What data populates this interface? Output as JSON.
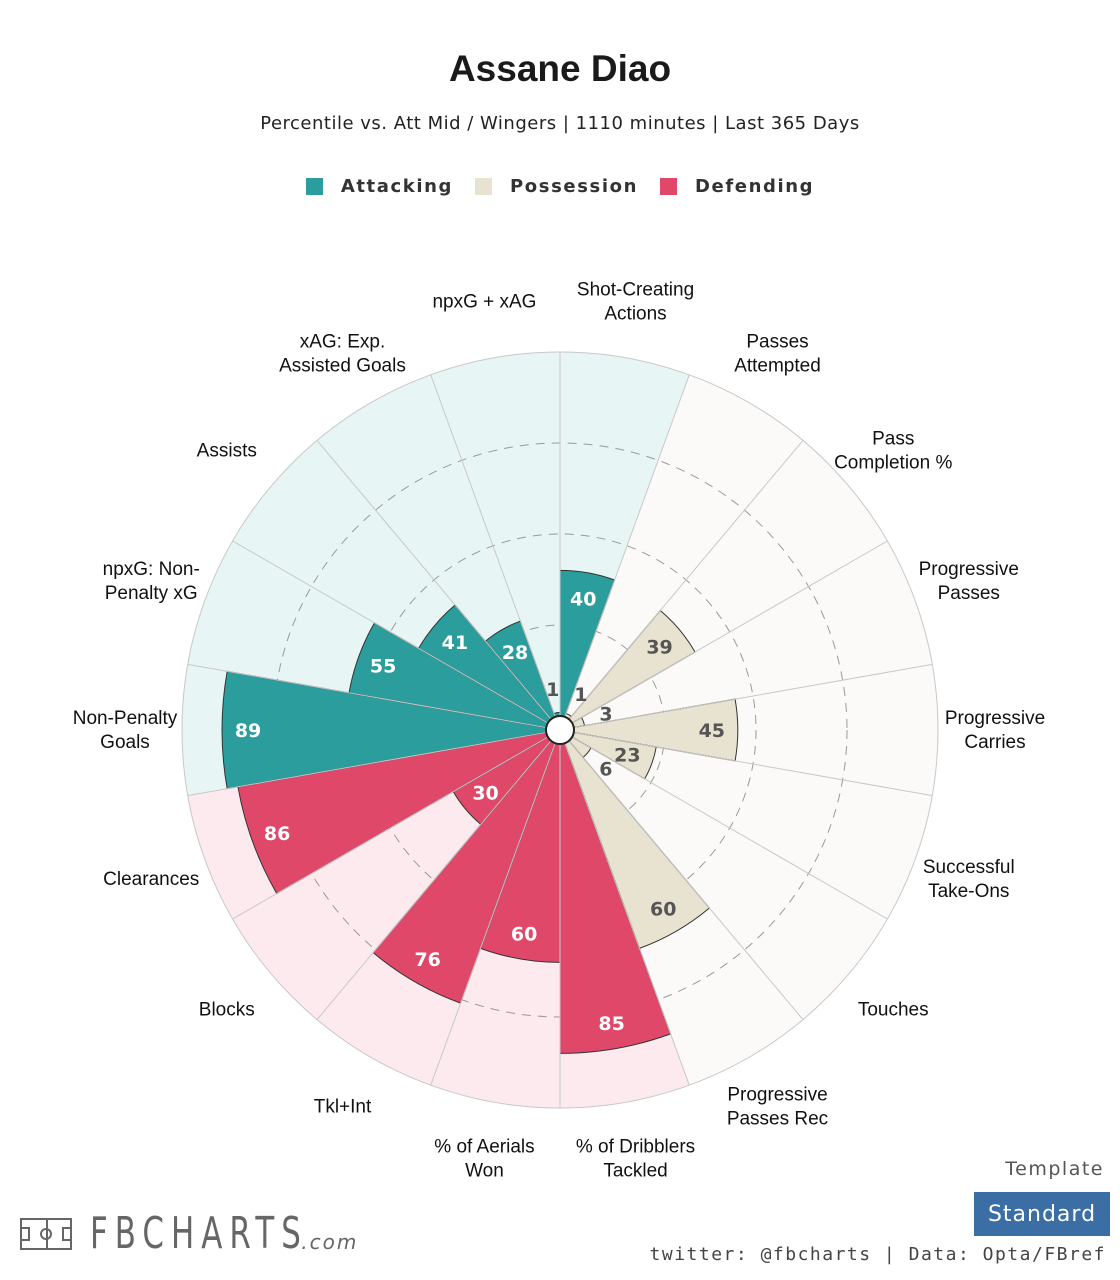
{
  "title": "Assane Diao",
  "subtitle": "Percentile vs. Att Mid / Wingers | 1110 minutes | Last 365 Days",
  "legend": [
    {
      "label": "Attacking",
      "color": "#2a9d9c"
    },
    {
      "label": "Possession",
      "color": "#e8e2d0"
    },
    {
      "label": "Defending",
      "color": "#e0486a"
    }
  ],
  "colors": {
    "attacking": "#2a9d9c",
    "possession": "#e8e2d0",
    "defending": "#e0486a",
    "attacking_bg": "#e8f5f5",
    "possession_bg": "#fbfaf8",
    "defending_bg": "#fceaef",
    "grid": "#bbbbbb",
    "template_button": "#3a6ea5"
  },
  "chart_data": {
    "type": "polar-bar",
    "scale": [
      0,
      100
    ],
    "grid_rings": [
      25,
      50,
      75
    ],
    "start": "12 o'clock, clockwise",
    "series": [
      {
        "label": "Shot-Creating\nActions",
        "category": "attacking",
        "value": 40
      },
      {
        "label": "Passes\nAttempted",
        "category": "possession",
        "value": 1
      },
      {
        "label": "Pass\nCompletion %",
        "category": "possession",
        "value": 39
      },
      {
        "label": "Progressive\nPasses",
        "category": "possession",
        "value": 3
      },
      {
        "label": "Progressive\nCarries",
        "category": "possession",
        "value": 45
      },
      {
        "label": "Successful\nTake-Ons",
        "category": "possession",
        "value": 23
      },
      {
        "label": "Touches",
        "category": "possession",
        "value": 6
      },
      {
        "label": "Progressive\nPasses Rec",
        "category": "possession",
        "value": 60
      },
      {
        "label": "% of Dribblers\nTackled",
        "category": "defending",
        "value": 85
      },
      {
        "label": "% of Aerials\nWon",
        "category": "defending",
        "value": 60
      },
      {
        "label": "Tkl+Int",
        "category": "defending",
        "value": 76
      },
      {
        "label": "Blocks",
        "category": "defending",
        "value": 30
      },
      {
        "label": "Clearances",
        "category": "defending",
        "value": 86
      },
      {
        "label": "Non-Penalty\nGoals",
        "category": "attacking",
        "value": 89
      },
      {
        "label": "npxG: Non-\nPenalty xG",
        "category": "attacking",
        "value": 55
      },
      {
        "label": "Assists",
        "category": "attacking",
        "value": 41
      },
      {
        "label": "xAG: Exp.\nAssisted Goals",
        "category": "attacking",
        "value": 28
      },
      {
        "label": "npxG + xAG",
        "category": "attacking",
        "value": 1
      }
    ]
  },
  "footer": {
    "template_label": "Template",
    "template_value": "Standard",
    "credits": "twitter: @fbcharts | Data: Opta/FBref",
    "logo_text": "FBCHARTS",
    "logo_domain": ".com"
  }
}
